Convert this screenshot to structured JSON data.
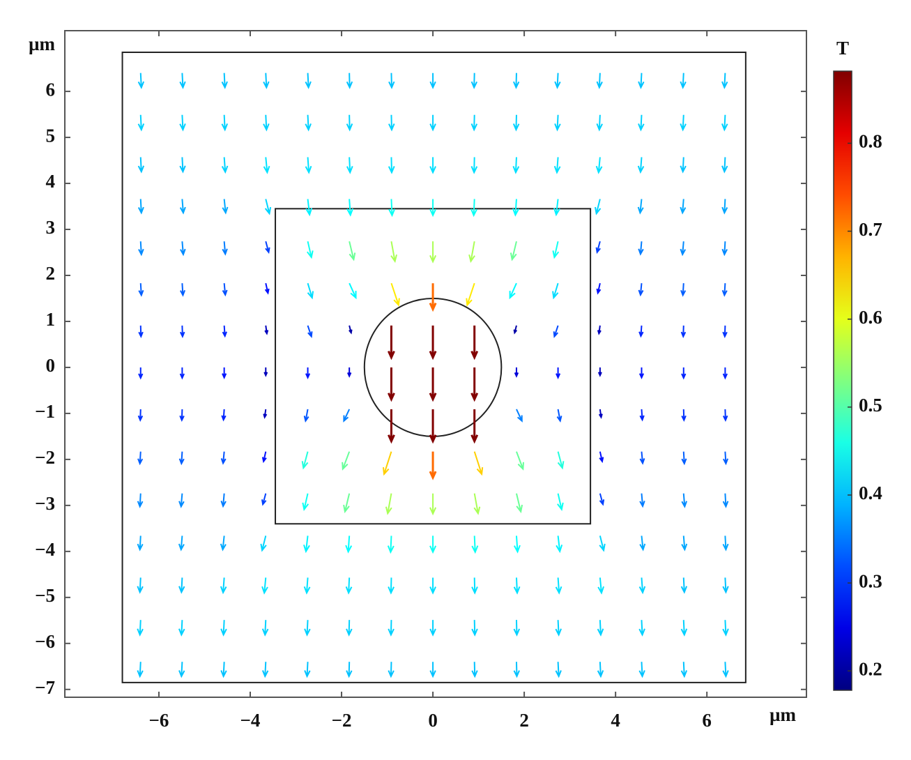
{
  "chart_data": {
    "type": "quiver",
    "x_unit": "µm",
    "y_unit": "µm",
    "colorbar_label": "T",
    "colormap": "jet",
    "clim": [
      0.178,
      0.882
    ],
    "cticks": [
      0.2,
      0.3,
      0.4,
      0.5,
      0.6,
      0.7,
      0.8
    ],
    "xlim": [
      -8.06,
      8.18
    ],
    "ylim": [
      -7.17,
      7.32
    ],
    "xticks": [
      {
        "value": -6,
        "label": "−6"
      },
      {
        "value": -4,
        "label": "−4"
      },
      {
        "value": -2,
        "label": "−2"
      },
      0,
      2,
      4,
      6
    ],
    "yticks": [
      {
        "value": -7,
        "label": "−7"
      },
      {
        "value": -6,
        "label": "−6"
      },
      {
        "value": -5,
        "label": "−5"
      },
      {
        "value": -4,
        "label": "−4"
      },
      {
        "value": -3,
        "label": "−3"
      },
      {
        "value": -2,
        "label": "−2"
      },
      {
        "value": -1,
        "label": "−1"
      },
      0,
      1,
      2,
      3,
      4,
      5,
      6
    ],
    "geometry": {
      "outer": [
        -6.8,
        6.85,
        -6.85,
        6.85
      ],
      "inner": [
        -3.45,
        3.45,
        -3.4,
        3.45
      ],
      "circle_r": 1.5
    },
    "x": [
      -6.4,
      -5.49,
      -4.57,
      -3.66,
      -2.74,
      -1.83,
      -0.91,
      0,
      0.91,
      1.83,
      2.74,
      3.66,
      4.57,
      5.49,
      6.4
    ],
    "y": [
      6.4,
      5.49,
      4.57,
      3.66,
      2.74,
      1.83,
      0.91,
      0,
      -0.91,
      -1.83,
      -2.74,
      -3.66,
      -4.57,
      -5.49,
      -6.4
    ],
    "u": [
      [
        0.02,
        0.02,
        0.02,
        0.02,
        0.02,
        0.01,
        0.01,
        0,
        -0.01,
        -0.01,
        -0.02,
        -0.02,
        -0.02,
        -0.02,
        -0.02
      ],
      [
        0.02,
        0.02,
        0.02,
        0.02,
        0.02,
        0.01,
        0.01,
        0,
        -0.01,
        -0.01,
        -0.02,
        -0.02,
        -0.02,
        -0.02,
        -0.02
      ],
      [
        0.02,
        0.02,
        0.03,
        0.04,
        0.03,
        0.02,
        0.01,
        0,
        -0.01,
        -0.02,
        -0.03,
        -0.04,
        -0.03,
        -0.02,
        -0.02
      ],
      [
        0.02,
        0.03,
        0.04,
        0.1,
        0.05,
        0.03,
        0.02,
        0,
        -0.02,
        -0.03,
        -0.05,
        -0.1,
        -0.04,
        -0.03,
        -0.02
      ],
      [
        0.02,
        0.03,
        0.03,
        0.08,
        0.1,
        0.12,
        0.1,
        0,
        -0.1,
        -0.12,
        -0.1,
        -0.08,
        -0.03,
        -0.03,
        -0.02
      ],
      [
        0.02,
        0.02,
        0.03,
        0.06,
        0.12,
        0.18,
        0.2,
        0,
        -0.2,
        -0.18,
        -0.12,
        -0.06,
        -0.03,
        -0.02,
        -0.02
      ],
      [
        0.01,
        0.01,
        0.02,
        0.03,
        0.1,
        0.05,
        0,
        0,
        0,
        -0.05,
        -0.1,
        -0.03,
        -0.02,
        -0.01,
        -0.01
      ],
      [
        0,
        0,
        0,
        0,
        0,
        0,
        0,
        0,
        0,
        0,
        0,
        0,
        0,
        0,
        0
      ],
      [
        -0.01,
        -0.01,
        -0.02,
        -0.03,
        -0.06,
        -0.15,
        0,
        0,
        0,
        0.15,
        0.06,
        0.03,
        0.02,
        0.01,
        0.01
      ],
      [
        -0.02,
        -0.02,
        -0.03,
        -0.06,
        -0.12,
        -0.18,
        -0.2,
        0,
        0.2,
        0.18,
        0.12,
        0.06,
        0.03,
        0.02,
        0.02
      ],
      [
        -0.02,
        -0.03,
        -0.03,
        -0.08,
        -0.1,
        -0.12,
        -0.1,
        0,
        0.1,
        0.12,
        0.1,
        0.08,
        0.03,
        0.03,
        0.02
      ],
      [
        -0.02,
        -0.03,
        -0.04,
        -0.1,
        -0.05,
        -0.03,
        -0.02,
        0,
        0.02,
        0.03,
        0.05,
        0.1,
        0.04,
        0.03,
        0.02
      ],
      [
        -0.02,
        -0.02,
        -0.03,
        -0.04,
        -0.03,
        -0.02,
        -0.01,
        0,
        0.01,
        0.02,
        0.03,
        0.04,
        0.03,
        0.02,
        0.02
      ],
      [
        -0.02,
        -0.02,
        -0.02,
        -0.02,
        -0.02,
        -0.01,
        -0.01,
        0,
        0.01,
        0.01,
        0.02,
        0.02,
        0.02,
        0.02,
        0.02
      ],
      [
        -0.02,
        -0.02,
        -0.02,
        -0.02,
        -0.02,
        -0.01,
        -0.01,
        0,
        0.01,
        0.01,
        0.02,
        0.02,
        0.02,
        0.02,
        0.02
      ]
    ],
    "v": [
      [
        -0.4,
        -0.4,
        -0.4,
        -0.4,
        -0.4,
        -0.4,
        -0.4,
        -0.4,
        -0.4,
        -0.4,
        -0.4,
        -0.4,
        -0.4,
        -0.4,
        -0.4
      ],
      [
        -0.41,
        -0.41,
        -0.41,
        -0.41,
        -0.41,
        -0.41,
        -0.41,
        -0.41,
        -0.41,
        -0.41,
        -0.41,
        -0.41,
        -0.41,
        -0.41,
        -0.41
      ],
      [
        -0.4,
        -0.4,
        -0.41,
        -0.42,
        -0.42,
        -0.42,
        -0.42,
        -0.42,
        -0.42,
        -0.42,
        -0.42,
        -0.42,
        -0.41,
        -0.4,
        -0.4
      ],
      [
        -0.38,
        -0.38,
        -0.38,
        -0.4,
        -0.43,
        -0.44,
        -0.45,
        -0.45,
        -0.45,
        -0.44,
        -0.43,
        -0.4,
        -0.38,
        -0.38,
        -0.38
      ],
      [
        -0.36,
        -0.36,
        -0.35,
        -0.3,
        -0.44,
        -0.5,
        -0.55,
        -0.56,
        -0.55,
        -0.5,
        -0.44,
        -0.3,
        -0.35,
        -0.36,
        -0.36
      ],
      [
        -0.33,
        -0.33,
        -0.32,
        -0.27,
        -0.4,
        -0.4,
        -0.6,
        -0.72,
        -0.6,
        -0.4,
        -0.4,
        -0.27,
        -0.32,
        -0.33,
        -0.33
      ],
      [
        -0.3,
        -0.3,
        -0.29,
        -0.22,
        -0.3,
        -0.2,
        -0.88,
        -0.88,
        -0.88,
        -0.2,
        -0.3,
        -0.22,
        -0.29,
        -0.3,
        -0.3
      ],
      [
        -0.29,
        -0.29,
        -0.28,
        -0.22,
        -0.28,
        -0.24,
        -0.88,
        -0.88,
        -0.88,
        -0.24,
        -0.28,
        -0.22,
        -0.28,
        -0.29,
        -0.29
      ],
      [
        -0.3,
        -0.3,
        -0.29,
        -0.22,
        -0.32,
        -0.32,
        -0.88,
        -0.88,
        -0.88,
        -0.32,
        -0.32,
        -0.22,
        -0.29,
        -0.3,
        -0.3
      ],
      [
        -0.33,
        -0.33,
        -0.32,
        -0.27,
        -0.45,
        -0.48,
        -0.62,
        -0.72,
        -0.62,
        -0.48,
        -0.45,
        -0.27,
        -0.32,
        -0.33,
        -0.33
      ],
      [
        -0.36,
        -0.36,
        -0.35,
        -0.3,
        -0.44,
        -0.5,
        -0.55,
        -0.56,
        -0.55,
        -0.5,
        -0.44,
        -0.3,
        -0.35,
        -0.36,
        -0.36
      ],
      [
        -0.38,
        -0.38,
        -0.38,
        -0.4,
        -0.43,
        -0.44,
        -0.45,
        -0.45,
        -0.45,
        -0.44,
        -0.43,
        -0.4,
        -0.38,
        -0.38,
        -0.38
      ],
      [
        -0.4,
        -0.4,
        -0.41,
        -0.42,
        -0.42,
        -0.42,
        -0.42,
        -0.42,
        -0.42,
        -0.42,
        -0.42,
        -0.42,
        -0.41,
        -0.4,
        -0.4
      ],
      [
        -0.41,
        -0.41,
        -0.41,
        -0.41,
        -0.41,
        -0.41,
        -0.41,
        -0.41,
        -0.41,
        -0.41,
        -0.41,
        -0.41,
        -0.41,
        -0.41,
        -0.41
      ],
      [
        -0.4,
        -0.4,
        -0.4,
        -0.4,
        -0.4,
        -0.4,
        -0.4,
        -0.4,
        -0.4,
        -0.4,
        -0.4,
        -0.4,
        -0.4,
        -0.4,
        -0.4
      ]
    ]
  }
}
